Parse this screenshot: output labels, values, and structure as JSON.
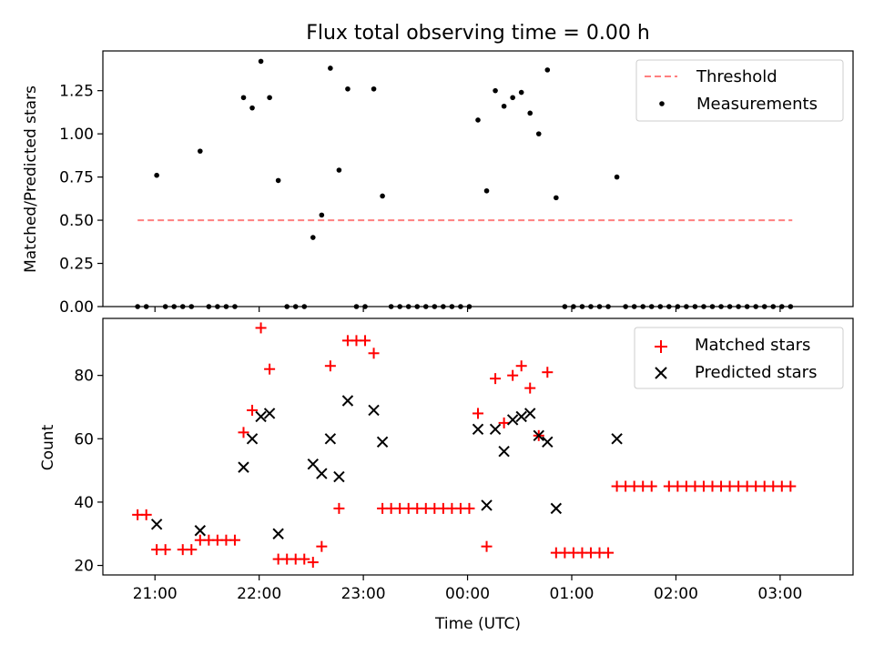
{
  "chart_data": [
    {
      "type": "scatter",
      "title": "Flux total observing time = 0.00 h",
      "xlabel": "",
      "ylabel": "Matched/Predicted stars",
      "xlim": [
        20.5,
        3.7
      ],
      "ylim": [
        0.0,
        1.48
      ],
      "yticks": [
        0.0,
        0.25,
        0.5,
        0.75,
        1.0,
        1.25
      ],
      "ytick_labels": [
        "0.00",
        "0.25",
        "0.50",
        "0.75",
        "1.00",
        "1.25"
      ],
      "xtick_labels": [],
      "legend_position": "upper right",
      "threshold": {
        "name": "Threshold",
        "y": 0.5,
        "x_start": "20:50",
        "x_end": "03:07",
        "color": "#ff7f7f",
        "style": "dashed"
      },
      "series": [
        {
          "name": "Measurements",
          "marker": "dot",
          "color": "#000000",
          "points": [
            [
              "20:50",
              0.0
            ],
            [
              "20:55",
              0.0
            ],
            [
              "21:01",
              0.76
            ],
            [
              "21:06",
              0.0
            ],
            [
              "21:11",
              0.0
            ],
            [
              "21:16",
              0.0
            ],
            [
              "21:21",
              0.0
            ],
            [
              "21:26",
              0.9
            ],
            [
              "21:31",
              0.0
            ],
            [
              "21:36",
              0.0
            ],
            [
              "21:41",
              0.0
            ],
            [
              "21:46",
              0.0
            ],
            [
              "21:51",
              1.21
            ],
            [
              "21:56",
              1.15
            ],
            [
              "22:01",
              1.42
            ],
            [
              "22:06",
              1.21
            ],
            [
              "22:11",
              0.73
            ],
            [
              "22:16",
              0.0
            ],
            [
              "22:21",
              0.0
            ],
            [
              "22:26",
              0.0
            ],
            [
              "22:31",
              0.4
            ],
            [
              "22:36",
              0.53
            ],
            [
              "22:41",
              1.38
            ],
            [
              "22:46",
              0.79
            ],
            [
              "22:51",
              1.26
            ],
            [
              "22:56",
              0.0
            ],
            [
              "23:01",
              0.0
            ],
            [
              "23:06",
              1.26
            ],
            [
              "23:11",
              0.64
            ],
            [
              "23:16",
              0.0
            ],
            [
              "23:21",
              0.0
            ],
            [
              "23:26",
              0.0
            ],
            [
              "23:31",
              0.0
            ],
            [
              "23:36",
              0.0
            ],
            [
              "23:41",
              0.0
            ],
            [
              "23:46",
              0.0
            ],
            [
              "23:51",
              0.0
            ],
            [
              "23:56",
              0.0
            ],
            [
              "00:01",
              0.0
            ],
            [
              "00:06",
              1.08
            ],
            [
              "00:11",
              0.67
            ],
            [
              "00:16",
              1.25
            ],
            [
              "00:21",
              1.16
            ],
            [
              "00:26",
              1.21
            ],
            [
              "00:31",
              1.24
            ],
            [
              "00:36",
              1.12
            ],
            [
              "00:41",
              1.0
            ],
            [
              "00:46",
              1.37
            ],
            [
              "00:51",
              0.63
            ],
            [
              "00:56",
              0.0
            ],
            [
              "01:01",
              0.0
            ],
            [
              "01:06",
              0.0
            ],
            [
              "01:11",
              0.0
            ],
            [
              "01:16",
              0.0
            ],
            [
              "01:21",
              0.0
            ],
            [
              "01:26",
              0.75
            ],
            [
              "01:31",
              0.0
            ],
            [
              "01:36",
              0.0
            ],
            [
              "01:41",
              0.0
            ],
            [
              "01:46",
              0.0
            ],
            [
              "01:51",
              0.0
            ],
            [
              "01:56",
              0.0
            ],
            [
              "02:01",
              0.0
            ],
            [
              "02:06",
              0.0
            ],
            [
              "02:11",
              0.0
            ],
            [
              "02:16",
              0.0
            ],
            [
              "02:21",
              0.0
            ],
            [
              "02:26",
              0.0
            ],
            [
              "02:31",
              0.0
            ],
            [
              "02:36",
              0.0
            ],
            [
              "02:41",
              0.0
            ],
            [
              "02:46",
              0.0
            ],
            [
              "02:51",
              0.0
            ],
            [
              "02:56",
              0.0
            ],
            [
              "03:01",
              0.0
            ],
            [
              "03:06",
              0.0
            ]
          ]
        }
      ]
    },
    {
      "type": "scatter",
      "title": "",
      "xlabel": "Time (UTC)",
      "ylabel": "Count",
      "xlim": [
        20.5,
        3.7
      ],
      "ylim": [
        17,
        98
      ],
      "yticks": [
        20,
        40,
        60,
        80
      ],
      "ytick_labels": [
        "20",
        "40",
        "60",
        "80"
      ],
      "xtick_positions": [
        21,
        22,
        23,
        0,
        1,
        2,
        3
      ],
      "xtick_labels": [
        "21:00",
        "22:00",
        "23:00",
        "00:00",
        "01:00",
        "02:00",
        "03:00"
      ],
      "legend_position": "upper right",
      "series": [
        {
          "name": "Matched stars",
          "marker": "plus",
          "color": "#ff0000",
          "points": [
            [
              "20:50",
              36
            ],
            [
              "20:55",
              36
            ],
            [
              "21:01",
              25
            ],
            [
              "21:06",
              25
            ],
            [
              "21:16",
              25
            ],
            [
              "21:21",
              25
            ],
            [
              "21:26",
              28
            ],
            [
              "21:31",
              28
            ],
            [
              "21:36",
              28
            ],
            [
              "21:41",
              28
            ],
            [
              "21:46",
              28
            ],
            [
              "21:51",
              62
            ],
            [
              "21:56",
              69
            ],
            [
              "22:01",
              95
            ],
            [
              "22:06",
              82
            ],
            [
              "22:11",
              22
            ],
            [
              "22:16",
              22
            ],
            [
              "22:21",
              22
            ],
            [
              "22:26",
              22
            ],
            [
              "22:31",
              21
            ],
            [
              "22:36",
              26
            ],
            [
              "22:41",
              83
            ],
            [
              "22:46",
              38
            ],
            [
              "22:51",
              91
            ],
            [
              "22:56",
              91
            ],
            [
              "23:01",
              91
            ],
            [
              "23:06",
              87
            ],
            [
              "23:11",
              38
            ],
            [
              "23:16",
              38
            ],
            [
              "23:21",
              38
            ],
            [
              "23:26",
              38
            ],
            [
              "23:31",
              38
            ],
            [
              "23:36",
              38
            ],
            [
              "23:41",
              38
            ],
            [
              "23:46",
              38
            ],
            [
              "23:51",
              38
            ],
            [
              "23:56",
              38
            ],
            [
              "00:01",
              38
            ],
            [
              "00:06",
              68
            ],
            [
              "00:11",
              26
            ],
            [
              "00:16",
              79
            ],
            [
              "00:21",
              65
            ],
            [
              "00:26",
              80
            ],
            [
              "00:31",
              83
            ],
            [
              "00:36",
              76
            ],
            [
              "00:41",
              61
            ],
            [
              "00:46",
              81
            ],
            [
              "00:51",
              24
            ],
            [
              "00:56",
              24
            ],
            [
              "01:01",
              24
            ],
            [
              "01:06",
              24
            ],
            [
              "01:11",
              24
            ],
            [
              "01:16",
              24
            ],
            [
              "01:21",
              24
            ],
            [
              "01:26",
              45
            ],
            [
              "01:31",
              45
            ],
            [
              "01:36",
              45
            ],
            [
              "01:41",
              45
            ],
            [
              "01:46",
              45
            ],
            [
              "01:56",
              45
            ],
            [
              "02:01",
              45
            ],
            [
              "02:06",
              45
            ],
            [
              "02:11",
              45
            ],
            [
              "02:16",
              45
            ],
            [
              "02:21",
              45
            ],
            [
              "02:26",
              45
            ],
            [
              "02:31",
              45
            ],
            [
              "02:36",
              45
            ],
            [
              "02:41",
              45
            ],
            [
              "02:46",
              45
            ],
            [
              "02:51",
              45
            ],
            [
              "02:56",
              45
            ],
            [
              "03:01",
              45
            ],
            [
              "03:06",
              45
            ]
          ]
        },
        {
          "name": "Predicted stars",
          "marker": "x",
          "color": "#000000",
          "points": [
            [
              "21:01",
              33
            ],
            [
              "21:26",
              31
            ],
            [
              "21:51",
              51
            ],
            [
              "21:56",
              60
            ],
            [
              "22:01",
              67
            ],
            [
              "22:06",
              68
            ],
            [
              "22:11",
              30
            ],
            [
              "22:31",
              52
            ],
            [
              "22:36",
              49
            ],
            [
              "22:41",
              60
            ],
            [
              "22:46",
              48
            ],
            [
              "22:51",
              72
            ],
            [
              "23:06",
              69
            ],
            [
              "23:11",
              59
            ],
            [
              "00:06",
              63
            ],
            [
              "00:11",
              39
            ],
            [
              "00:16",
              63
            ],
            [
              "00:21",
              56
            ],
            [
              "00:26",
              66
            ],
            [
              "00:31",
              67
            ],
            [
              "00:36",
              68
            ],
            [
              "00:41",
              61
            ],
            [
              "00:46",
              59
            ],
            [
              "00:51",
              38
            ],
            [
              "01:26",
              60
            ]
          ]
        }
      ]
    }
  ]
}
